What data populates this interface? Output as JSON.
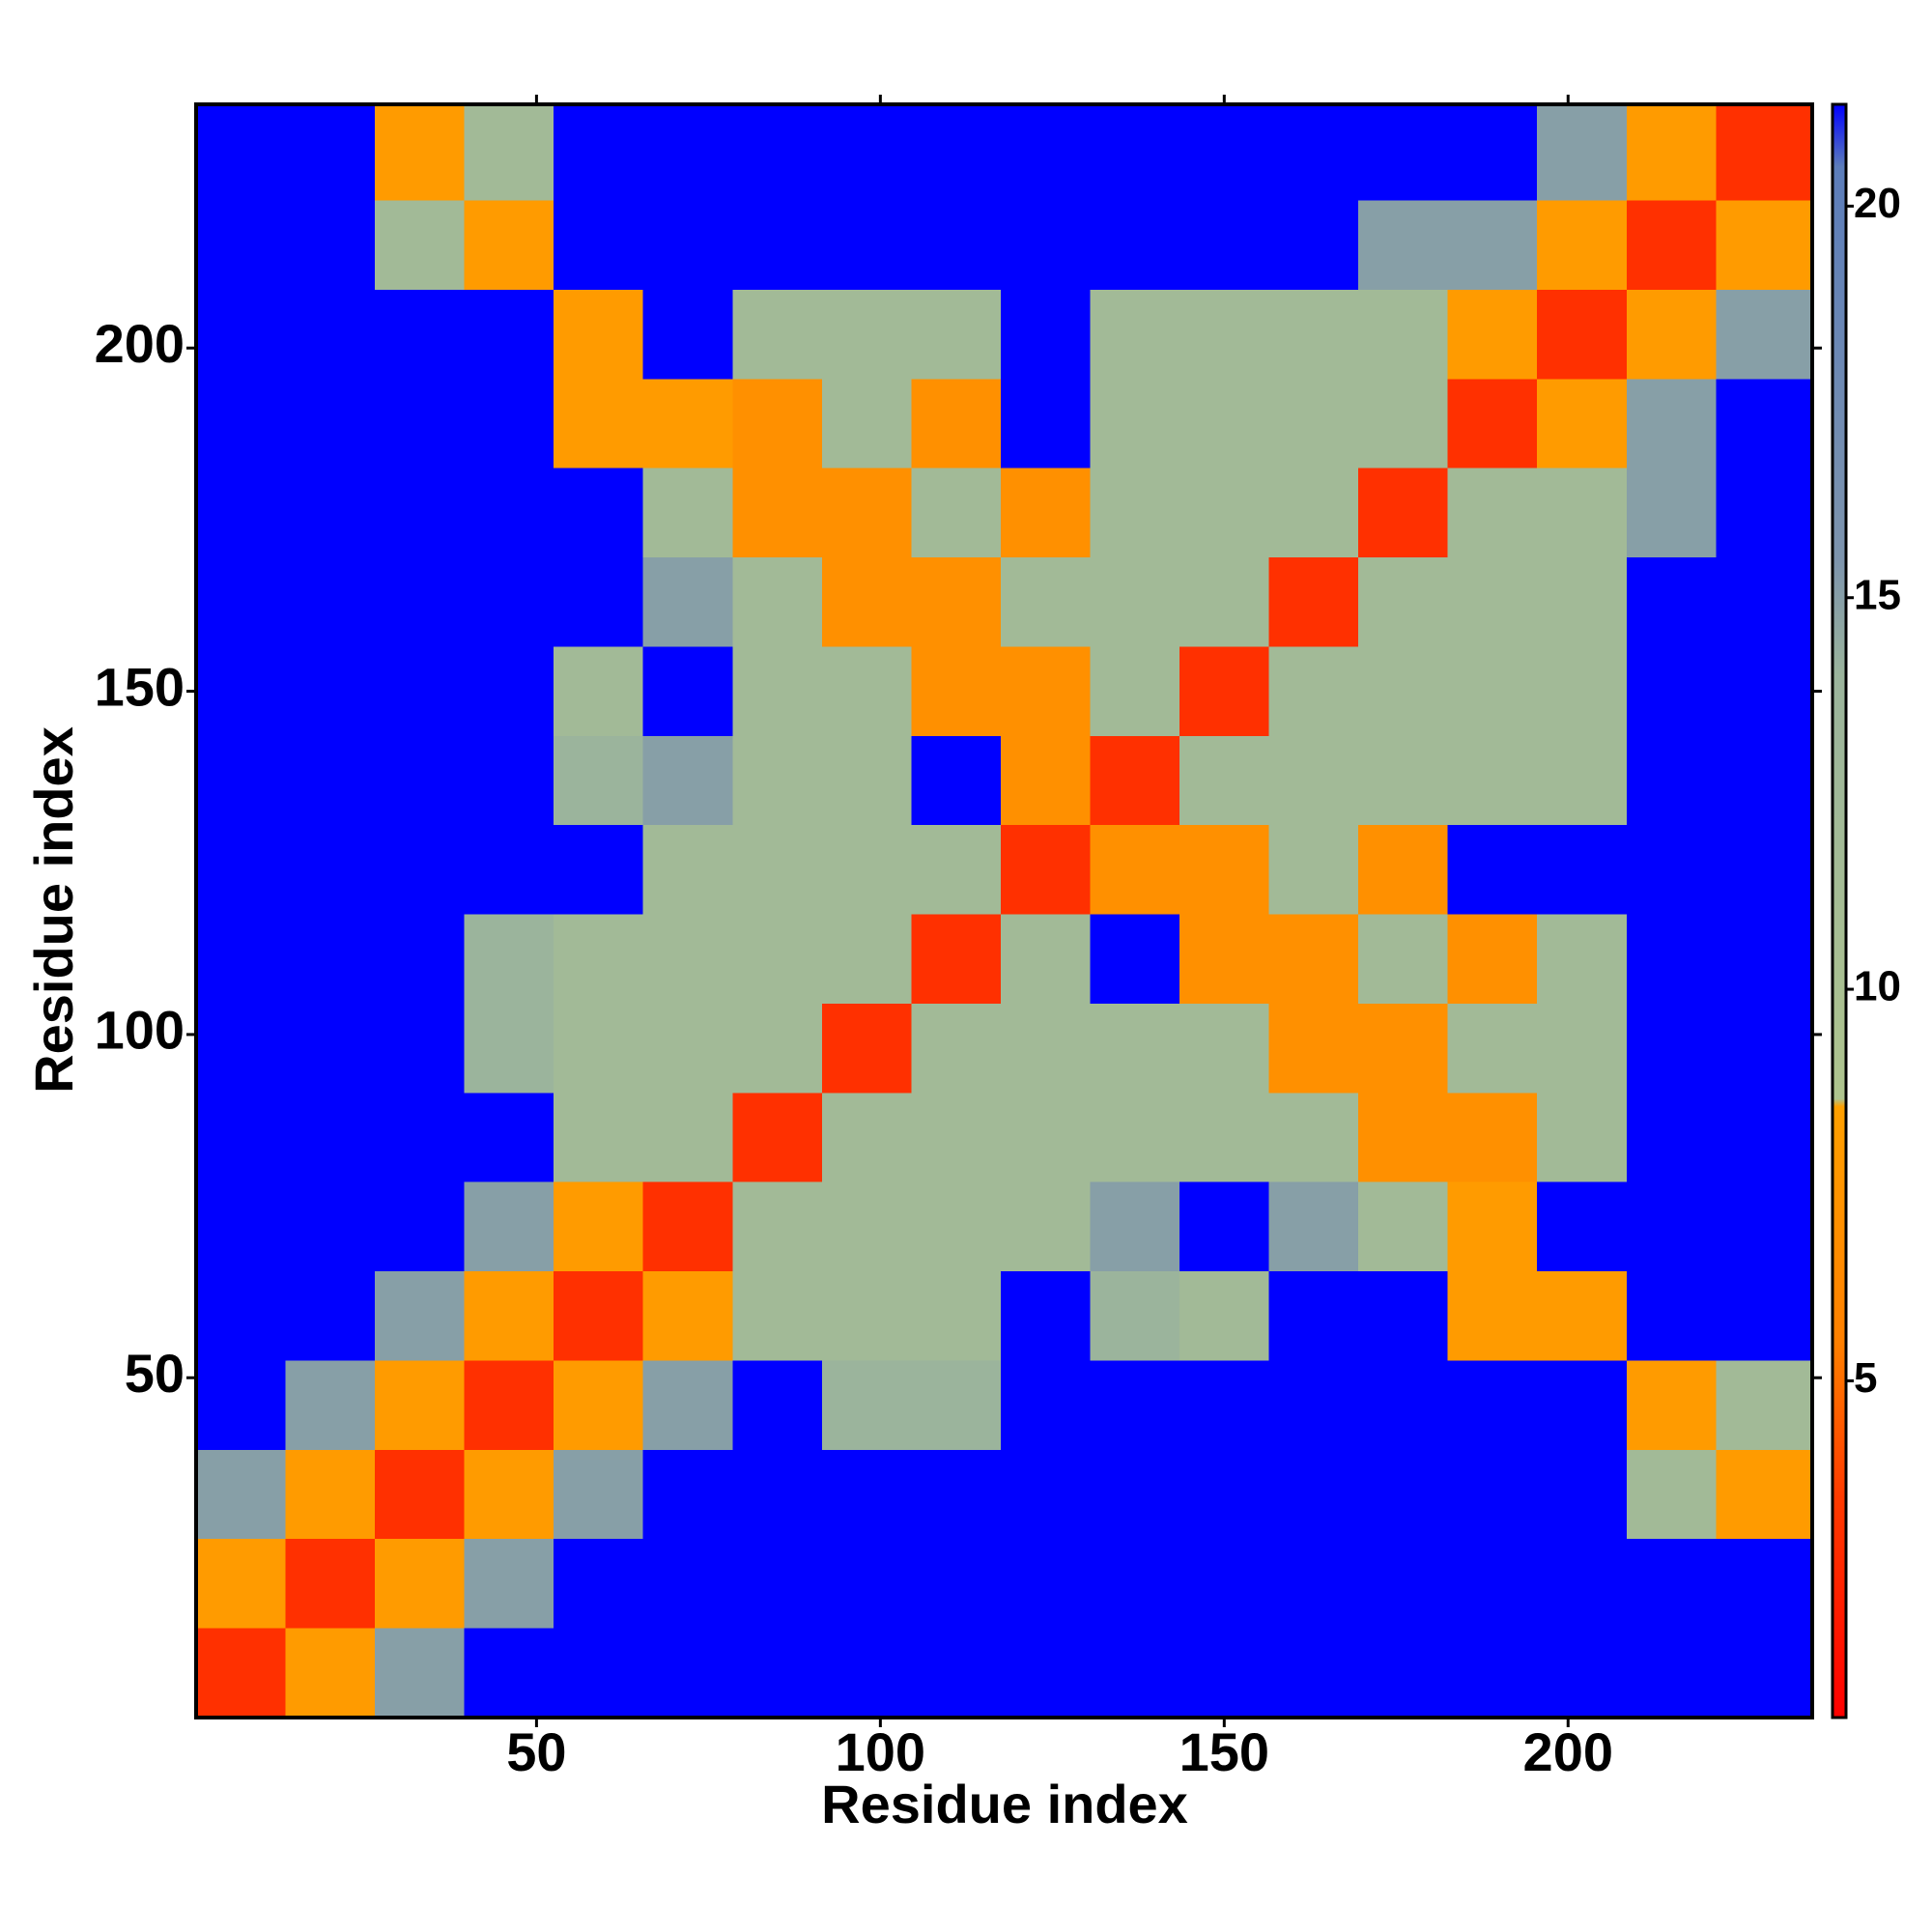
{
  "chart_data": {
    "type": "heatmap",
    "xlabel": "Residue index",
    "ylabel": "Residue index",
    "xlim": [
      0.5,
      235.5
    ],
    "ylim": [
      0.5,
      235.5
    ],
    "xticks": [
      50,
      100,
      150,
      200
    ],
    "yticks": [
      50,
      100,
      150,
      200
    ],
    "xbins": [
      0.5,
      13.5,
      26.5,
      39.5,
      52.5,
      65.5,
      78.5,
      91.5,
      104.5,
      117.5,
      130.5,
      143.5,
      156.5,
      169.5,
      182.5,
      195.5,
      208.5,
      221.5,
      235.5
    ],
    "ybins": [
      0.5,
      13.5,
      26.5,
      39.5,
      52.5,
      65.5,
      78.5,
      91.5,
      104.5,
      117.5,
      130.5,
      143.5,
      156.5,
      169.5,
      182.5,
      195.5,
      208.5,
      221.5,
      235.5
    ],
    "values": [
      [
        3,
        8,
        15,
        21.3,
        21.3,
        21.3,
        21.3,
        21.3,
        21.3,
        21.3,
        21.3,
        21.3,
        21.3,
        21.3,
        21.3,
        21.3,
        21.3,
        21.3
      ],
      [
        8,
        3,
        8,
        15,
        21.3,
        21.3,
        21.3,
        21.3,
        21.3,
        21.3,
        21.3,
        21.3,
        21.3,
        21.3,
        21.3,
        21.3,
        21.3,
        21.3
      ],
      [
        15,
        8,
        3,
        8,
        15,
        21.3,
        21.3,
        21.3,
        21.3,
        21.3,
        21.3,
        21.3,
        21.3,
        21.3,
        21.3,
        21.3,
        12,
        8
      ],
      [
        21.3,
        15,
        8,
        3,
        8,
        15,
        21.3,
        14,
        14,
        21.3,
        21.3,
        21.3,
        21.3,
        21.3,
        21.3,
        21.3,
        8,
        12
      ],
      [
        21.3,
        21.3,
        15,
        8,
        3,
        8,
        12,
        12,
        12,
        21.3,
        14,
        12,
        21.3,
        21.3,
        8,
        8,
        21.3,
        21.3
      ],
      [
        21.3,
        21.3,
        21.3,
        15,
        8,
        3,
        12,
        12,
        12,
        12,
        15,
        21.3,
        15,
        12,
        8,
        21.3,
        21.3,
        21.3
      ],
      [
        21.3,
        21.3,
        21.3,
        21.3,
        12,
        12,
        3,
        12,
        12,
        12,
        12,
        12,
        12,
        7,
        7,
        12,
        21.3,
        21.3
      ],
      [
        21.3,
        21.3,
        21.3,
        14,
        12,
        12,
        12,
        3,
        12,
        12,
        12,
        12,
        7,
        7,
        12,
        12,
        21.3,
        21.3
      ],
      [
        21.3,
        21.3,
        21.3,
        14,
        12,
        12,
        12,
        12,
        3,
        12,
        21.3,
        7,
        7,
        12,
        7,
        12,
        21.3,
        21.3
      ],
      [
        21.3,
        21.3,
        21.3,
        21.3,
        21.3,
        12,
        12,
        12,
        12,
        3,
        7,
        7,
        12,
        7,
        21.3,
        21.3,
        21.3,
        21.3
      ],
      [
        21.3,
        21.3,
        21.3,
        21.3,
        14,
        15,
        12,
        12,
        21.3,
        7,
        3,
        12,
        12,
        12,
        12,
        12,
        21.3,
        21.3
      ],
      [
        21.3,
        21.3,
        21.3,
        21.3,
        12,
        21.3,
        12,
        12,
        7,
        7,
        12,
        3,
        12,
        12,
        12,
        12,
        21.3,
        21.3
      ],
      [
        21.3,
        21.3,
        21.3,
        21.3,
        21.3,
        15,
        12,
        7,
        7,
        12,
        12,
        12,
        3,
        12,
        12,
        12,
        21.3,
        21.3
      ],
      [
        21.3,
        21.3,
        21.3,
        21.3,
        21.3,
        12,
        7,
        7,
        12,
        7,
        12,
        12,
        12,
        3,
        12,
        12,
        15,
        21.3
      ],
      [
        21.3,
        21.3,
        21.3,
        21.3,
        8,
        8,
        7,
        12,
        7,
        21.3,
        12,
        12,
        12,
        12,
        3,
        8,
        15,
        21.3
      ],
      [
        21.3,
        21.3,
        21.3,
        21.3,
        8,
        21.3,
        12,
        12,
        12,
        21.3,
        12,
        12,
        12,
        12,
        8,
        3,
        8,
        15
      ],
      [
        21.3,
        21.3,
        12,
        8,
        21.3,
        21.3,
        21.3,
        21.3,
        21.3,
        21.3,
        21.3,
        21.3,
        21.3,
        15,
        15,
        8,
        3,
        8
      ],
      [
        21.3,
        21.3,
        8,
        12,
        21.3,
        21.3,
        21.3,
        21.3,
        21.3,
        21.3,
        21.3,
        21.3,
        21.3,
        21.3,
        21.3,
        15,
        8,
        3
      ]
    ],
    "colorbar": {
      "zlim": [
        0.7,
        21.3
      ],
      "ticks": [
        5,
        10,
        15,
        20
      ],
      "colorscale": [
        [
          0.7,
          "#ff0000"
        ],
        [
          3.5,
          "#ff3a00"
        ],
        [
          5.5,
          "#ff8000"
        ],
        [
          8.5,
          "#ffa000"
        ],
        [
          8.6,
          "#aec48e"
        ],
        [
          14,
          "#9bb49c"
        ],
        [
          15.5,
          "#7d94ad"
        ],
        [
          20.5,
          "#5c7dba"
        ],
        [
          21.3,
          "#0000ff"
        ]
      ]
    }
  }
}
